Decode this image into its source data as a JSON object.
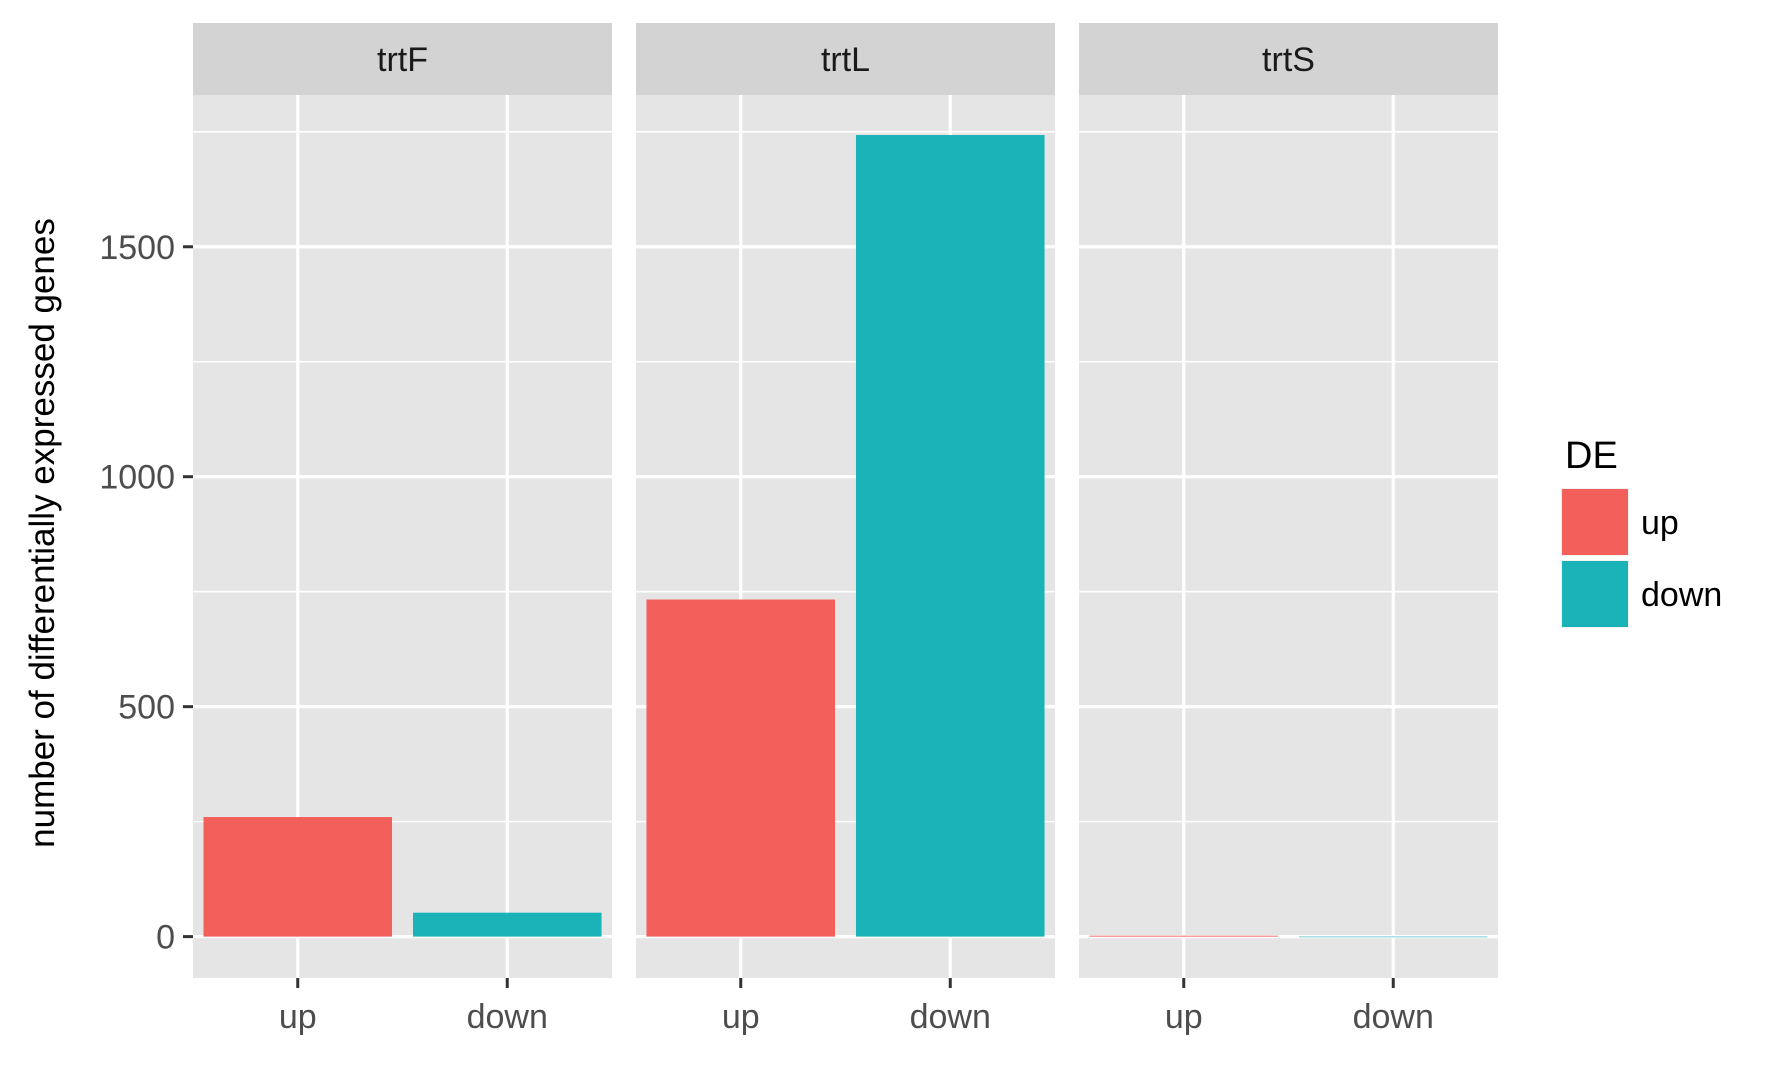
{
  "chart_data": {
    "type": "bar",
    "ylabel": "number of differentially expressed genes",
    "xlabel": "",
    "ylim": [
      -90,
      1830
    ],
    "yticks": [
      0,
      500,
      1000,
      1500
    ],
    "categories": [
      "up",
      "down"
    ],
    "facets": [
      {
        "label": "trtF",
        "values": [
          260,
          52
        ]
      },
      {
        "label": "trtL",
        "values": [
          733,
          1743
        ]
      },
      {
        "label": "trtS",
        "values": [
          2,
          0
        ]
      }
    ],
    "legend": {
      "title": "DE",
      "position": "right",
      "entries": [
        {
          "label": "up",
          "color": "#F3605C"
        },
        {
          "label": "down",
          "color": "#1AB3B7"
        }
      ]
    },
    "grid": true
  },
  "style": {
    "panel_bg": "#E5E5E5",
    "strip_bg": "#D3D3D3",
    "grid_color": "#FFFFFF",
    "text_color": "#000000",
    "tick_text_color": "#4D4D4D",
    "tick_color": "#333333"
  }
}
